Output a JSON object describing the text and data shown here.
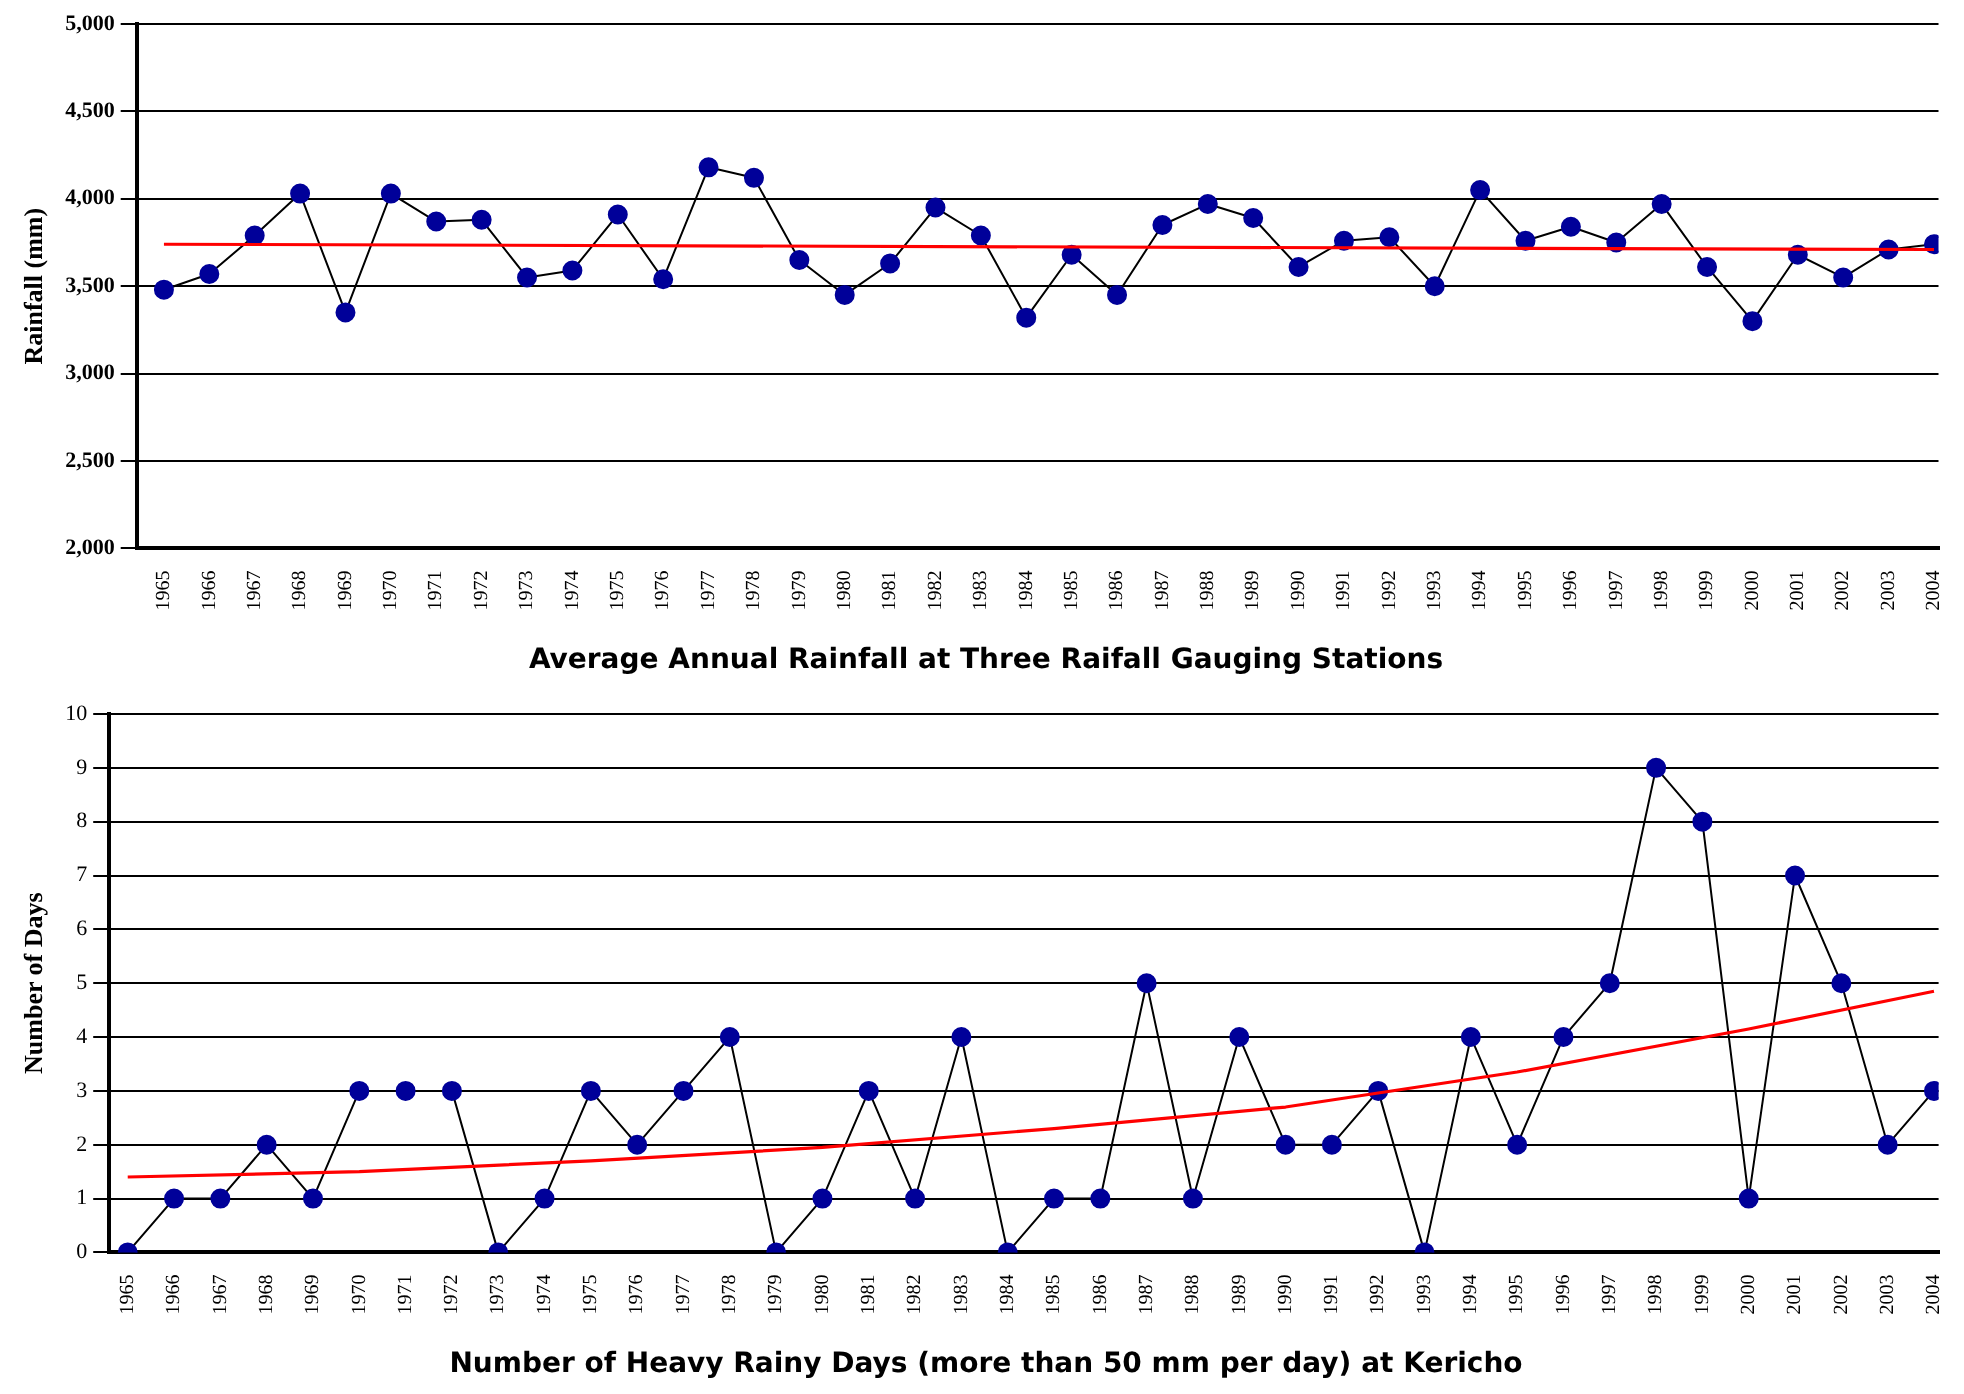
{
  "chart_data": [
    {
      "type": "line",
      "title": "Average Annual Rainfall at Three Raifall Gauging Stations",
      "ylabel": "Rainfall (mm)",
      "x": [
        1965,
        1966,
        1967,
        1968,
        1969,
        1970,
        1971,
        1972,
        1973,
        1974,
        1975,
        1976,
        1977,
        1978,
        1979,
        1980,
        1981,
        1982,
        1983,
        1984,
        1985,
        1986,
        1987,
        1988,
        1989,
        1990,
        1991,
        1992,
        1993,
        1994,
        1995,
        1996,
        1997,
        1998,
        1999,
        2000,
        2001,
        2002,
        2003,
        2004
      ],
      "series": [
        {
          "color": "#000099",
          "values": [
            3480,
            3570,
            3790,
            4030,
            3350,
            4030,
            3870,
            3880,
            3550,
            3590,
            3910,
            3540,
            4180,
            4120,
            3650,
            3450,
            3630,
            3950,
            3790,
            3320,
            3680,
            3450,
            3850,
            3970,
            3890,
            3610,
            3760,
            3780,
            3500,
            4050,
            3760,
            3840,
            3750,
            3970,
            3610,
            3300,
            3680,
            3550,
            3710,
            3740
          ]
        },
        {
          "type": "line",
          "marker": "none",
          "color": "#ff0000",
          "x": [
            1965,
            2004
          ],
          "values": [
            3740,
            3710
          ]
        }
      ],
      "xlim": [
        1964.4,
        2004.1
      ],
      "xticks": [
        1965,
        1966,
        1967,
        1968,
        1969,
        1970,
        1971,
        1972,
        1973,
        1974,
        1975,
        1976,
        1977,
        1978,
        1979,
        1980,
        1981,
        1982,
        1983,
        1984,
        1985,
        1986,
        1987,
        1988,
        1989,
        1990,
        1991,
        1992,
        1993,
        1994,
        1995,
        1996,
        1997,
        1998,
        1999,
        2000,
        2001,
        2002,
        2003,
        2004
      ],
      "ylim": [
        2000,
        5000
      ],
      "yticks": [
        {
          "value": 2000,
          "label": "2,000"
        },
        {
          "value": 2500,
          "label": "2,500"
        },
        {
          "value": 3000,
          "label": "3,000"
        },
        {
          "value": 3500,
          "label": "3,500"
        },
        {
          "value": 4000,
          "label": "4,000"
        },
        {
          "value": 4500,
          "label": "4,500"
        },
        {
          "value": 5000,
          "label": "5,000"
        }
      ],
      "grid": "y",
      "legend": false,
      "marker": "circle"
    },
    {
      "type": "line",
      "title": "Number of Heavy Rainy Days (more than 50 mm per day) at Kericho",
      "ylabel": "Number of Days",
      "x": [
        1965,
        1966,
        1967,
        1968,
        1969,
        1970,
        1971,
        1972,
        1973,
        1974,
        1975,
        1976,
        1977,
        1978,
        1979,
        1980,
        1981,
        1982,
        1983,
        1984,
        1985,
        1986,
        1987,
        1988,
        1989,
        1990,
        1991,
        1992,
        1993,
        1994,
        1995,
        1996,
        1997,
        1998,
        1999,
        2000,
        2001,
        2002,
        2003,
        2004
      ],
      "series": [
        {
          "color": "#000099",
          "values": [
            0,
            1,
            1,
            2,
            1,
            3,
            3,
            3,
            0,
            1,
            3,
            2,
            3,
            4,
            0,
            1,
            3,
            1,
            4,
            0,
            1,
            1,
            5,
            1,
            4,
            2,
            2,
            3,
            0,
            4,
            2,
            4,
            5,
            9,
            8,
            1,
            7,
            5,
            2,
            3
          ]
        },
        {
          "type": "line",
          "marker": "none",
          "color": "#ff0000",
          "x": [
            1965,
            1970,
            1975,
            1980,
            1985,
            1990,
            1995,
            2000,
            2004
          ],
          "values": [
            1.4,
            1.5,
            1.7,
            1.95,
            2.3,
            2.7,
            3.35,
            4.15,
            4.85
          ]
        }
      ],
      "xlim": [
        1964.6,
        2004.1
      ],
      "xticks": [
        1965,
        1966,
        1967,
        1968,
        1969,
        1970,
        1971,
        1972,
        1973,
        1974,
        1975,
        1976,
        1977,
        1978,
        1979,
        1980,
        1981,
        1982,
        1983,
        1984,
        1985,
        1986,
        1987,
        1988,
        1989,
        1990,
        1991,
        1992,
        1993,
        1994,
        1995,
        1996,
        1997,
        1998,
        1999,
        2000,
        2001,
        2002,
        2003,
        2004
      ],
      "ylim": [
        0,
        10
      ],
      "yticks": [
        0,
        1,
        2,
        3,
        4,
        5,
        6,
        7,
        8,
        9,
        10
      ],
      "grid": "y",
      "legend": false,
      "marker": "circle"
    }
  ]
}
